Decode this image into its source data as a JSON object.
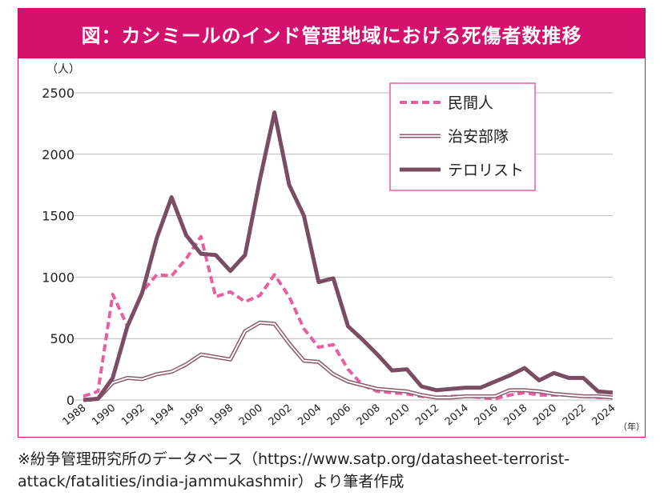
{
  "chart_data": {
    "type": "line",
    "title": "図：カシミールのインド管理地域における死傷者数推移",
    "ylabel": "（人）",
    "xlabel": "（年）",
    "ylim": [
      0,
      2500
    ],
    "yticks": [
      "0",
      "500",
      "1000",
      "1500",
      "2000",
      "2500"
    ],
    "xlim": [
      1988,
      2024
    ],
    "xticks": [
      "1988",
      "1990",
      "1992",
      "1994",
      "1996",
      "1998",
      "2000",
      "2002",
      "2004",
      "2006",
      "2008",
      "2010",
      "2012",
      "2014",
      "2016",
      "2018",
      "2020",
      "2022",
      "2024"
    ],
    "grid": "horizontal",
    "legend_position": "top-right",
    "x": [
      1988,
      1989,
      1990,
      1991,
      1992,
      1993,
      1994,
      1995,
      1996,
      1997,
      1998,
      1999,
      2000,
      2001,
      2002,
      2003,
      2004,
      2005,
      2006,
      2007,
      2008,
      2009,
      2010,
      2011,
      2012,
      2013,
      2014,
      2015,
      2016,
      2017,
      2018,
      2019,
      2020,
      2021,
      2022,
      2023,
      2024
    ],
    "series": [
      {
        "name": "民間人",
        "color": "#e6609f",
        "style": "dashed",
        "values": [
          30,
          70,
          860,
          600,
          880,
          1020,
          1010,
          1150,
          1330,
          840,
          880,
          800,
          850,
          1020,
          840,
          580,
          430,
          450,
          250,
          120,
          70,
          60,
          50,
          30,
          20,
          30,
          30,
          20,
          10,
          40,
          60,
          40,
          40,
          40,
          30,
          20,
          20
        ]
      },
      {
        "name": "治安部隊",
        "color": "#8b5a6e",
        "style": "double",
        "values": [
          0,
          10,
          140,
          180,
          170,
          210,
          230,
          290,
          370,
          350,
          330,
          560,
          630,
          620,
          460,
          320,
          310,
          210,
          150,
          120,
          90,
          80,
          70,
          40,
          20,
          20,
          30,
          30,
          30,
          80,
          80,
          70,
          50,
          40,
          30,
          30,
          20
        ]
      },
      {
        "name": "テロリスト",
        "color": "#7a4d63",
        "style": "solid",
        "values": [
          0,
          10,
          180,
          600,
          870,
          1320,
          1650,
          1340,
          1190,
          1180,
          1050,
          1180,
          1790,
          2340,
          1750,
          1500,
          960,
          990,
          600,
          490,
          370,
          240,
          250,
          110,
          80,
          90,
          100,
          100,
          150,
          200,
          260,
          160,
          220,
          180,
          180,
          70,
          60
        ]
      }
    ]
  },
  "source_note": "※紛争管理研究所のデータベース（https://www.satp.org/datasheet-terrorist-attack/fatalities/india-jammukashmir）より筆者作成"
}
